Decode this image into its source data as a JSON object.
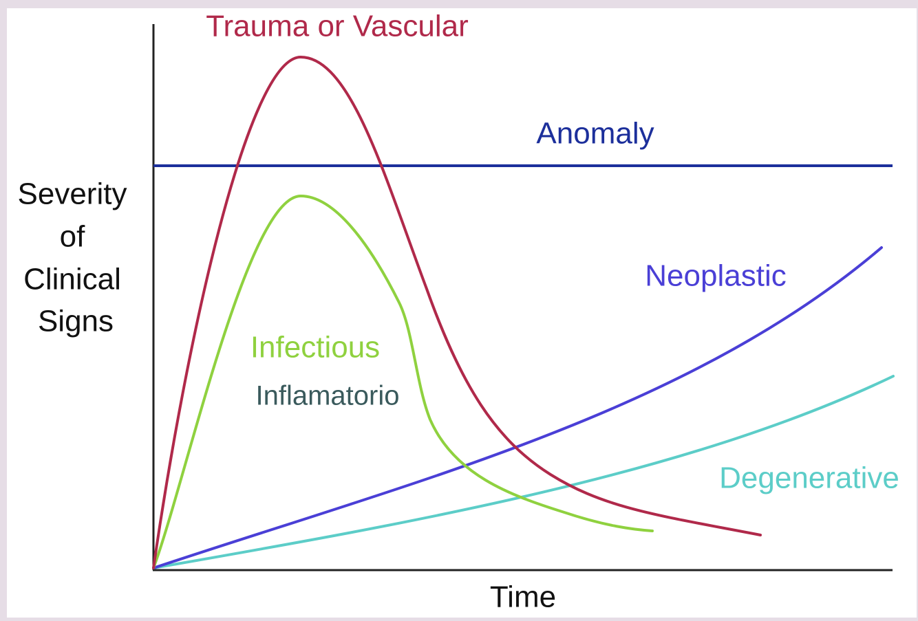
{
  "curves": {
    "trauma": "Trauma or Vascular",
    "anomaly": "Anomaly",
    "neoplastic": "Neoplastic",
    "infectious": "Infectious",
    "inflammatory": "Inflamatorio",
    "degenerative": "Degenerative"
  },
  "axes": {
    "y_title": [
      "Severity",
      "of",
      "Clinical",
      "Signs"
    ],
    "x_title": "Time"
  }
}
